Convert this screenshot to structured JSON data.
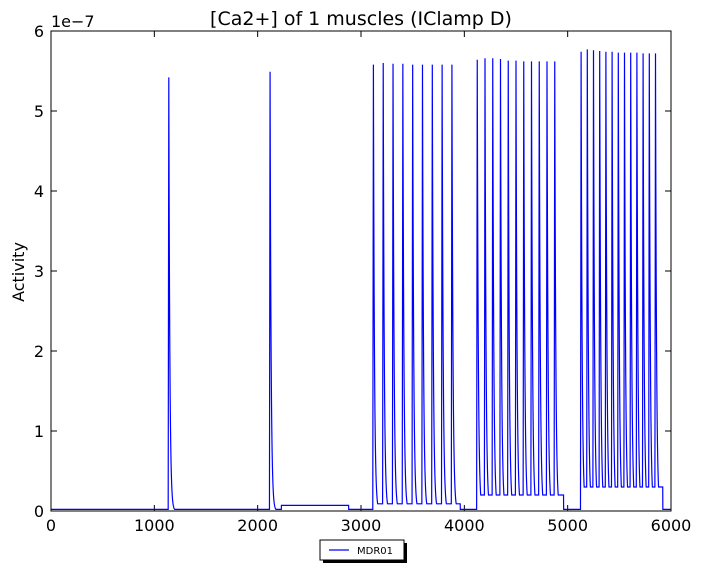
{
  "chart_data": {
    "type": "line",
    "title": "[Ca2+] of 1 muscles (IClamp D)",
    "xlabel": "",
    "ylabel": "Activity",
    "xlim": [
      0,
      6000
    ],
    "ylim": [
      0,
      6e-07
    ],
    "y_offset_label": "1e−7",
    "x_ticks": [
      0,
      1000,
      2000,
      3000,
      4000,
      5000,
      6000
    ],
    "x_tick_labels": [
      "0",
      "1000",
      "2000",
      "3000",
      "4000",
      "5000",
      "6000"
    ],
    "y_ticks": [
      0,
      1e-07,
      2e-07,
      3e-07,
      4e-07,
      5e-07,
      6e-07
    ],
    "y_tick_labels": [
      "0",
      "1",
      "2",
      "3",
      "4",
      "5",
      "6"
    ],
    "grid": false,
    "legend_position": "below-center",
    "series": [
      {
        "name": "MDR01",
        "color": "#0000ff",
        "baseline": 2e-09,
        "spike_decay": 10,
        "spikes": [
          {
            "t": 1140,
            "peak": 5.42e-07
          },
          {
            "t": 2120,
            "peak": 5.49e-07
          },
          {
            "t": 3120,
            "peak": 5.58e-07
          },
          {
            "t": 3215,
            "peak": 5.6e-07
          },
          {
            "t": 3310,
            "peak": 5.59e-07
          },
          {
            "t": 3405,
            "peak": 5.59e-07
          },
          {
            "t": 3500,
            "peak": 5.58e-07
          },
          {
            "t": 3595,
            "peak": 5.58e-07
          },
          {
            "t": 3690,
            "peak": 5.58e-07
          },
          {
            "t": 3785,
            "peak": 5.58e-07
          },
          {
            "t": 3880,
            "peak": 5.58e-07
          },
          {
            "t": 4125,
            "peak": 5.64e-07
          },
          {
            "t": 4200,
            "peak": 5.66e-07
          },
          {
            "t": 4275,
            "peak": 5.66e-07
          },
          {
            "t": 4350,
            "peak": 5.65e-07
          },
          {
            "t": 4425,
            "peak": 5.63e-07
          },
          {
            "t": 4500,
            "peak": 5.63e-07
          },
          {
            "t": 4575,
            "peak": 5.62e-07
          },
          {
            "t": 4650,
            "peak": 5.62e-07
          },
          {
            "t": 4725,
            "peak": 5.62e-07
          },
          {
            "t": 4800,
            "peak": 5.62e-07
          },
          {
            "t": 4875,
            "peak": 5.62e-07
          },
          {
            "t": 5130,
            "peak": 5.74e-07
          },
          {
            "t": 5190,
            "peak": 5.77e-07
          },
          {
            "t": 5250,
            "peak": 5.76e-07
          },
          {
            "t": 5310,
            "peak": 5.75e-07
          },
          {
            "t": 5370,
            "peak": 5.74e-07
          },
          {
            "t": 5430,
            "peak": 5.74e-07
          },
          {
            "t": 5490,
            "peak": 5.73e-07
          },
          {
            "t": 5550,
            "peak": 5.73e-07
          },
          {
            "t": 5610,
            "peak": 5.73e-07
          },
          {
            "t": 5670,
            "peak": 5.73e-07
          },
          {
            "t": 5730,
            "peak": 5.72e-07
          },
          {
            "t": 5790,
            "peak": 5.72e-07
          },
          {
            "t": 5850,
            "peak": 5.72e-07
          }
        ],
        "plateaus": [
          {
            "t_start": 2230,
            "t_end": 2880,
            "level": 7e-09
          }
        ],
        "troughs": [
          {
            "t_start": 3120,
            "t_end": 3960,
            "level": 9e-09
          },
          {
            "t_start": 4125,
            "t_end": 4960,
            "level": 2e-08
          },
          {
            "t_start": 5130,
            "t_end": 5920,
            "level": 3e-08
          }
        ]
      }
    ]
  }
}
